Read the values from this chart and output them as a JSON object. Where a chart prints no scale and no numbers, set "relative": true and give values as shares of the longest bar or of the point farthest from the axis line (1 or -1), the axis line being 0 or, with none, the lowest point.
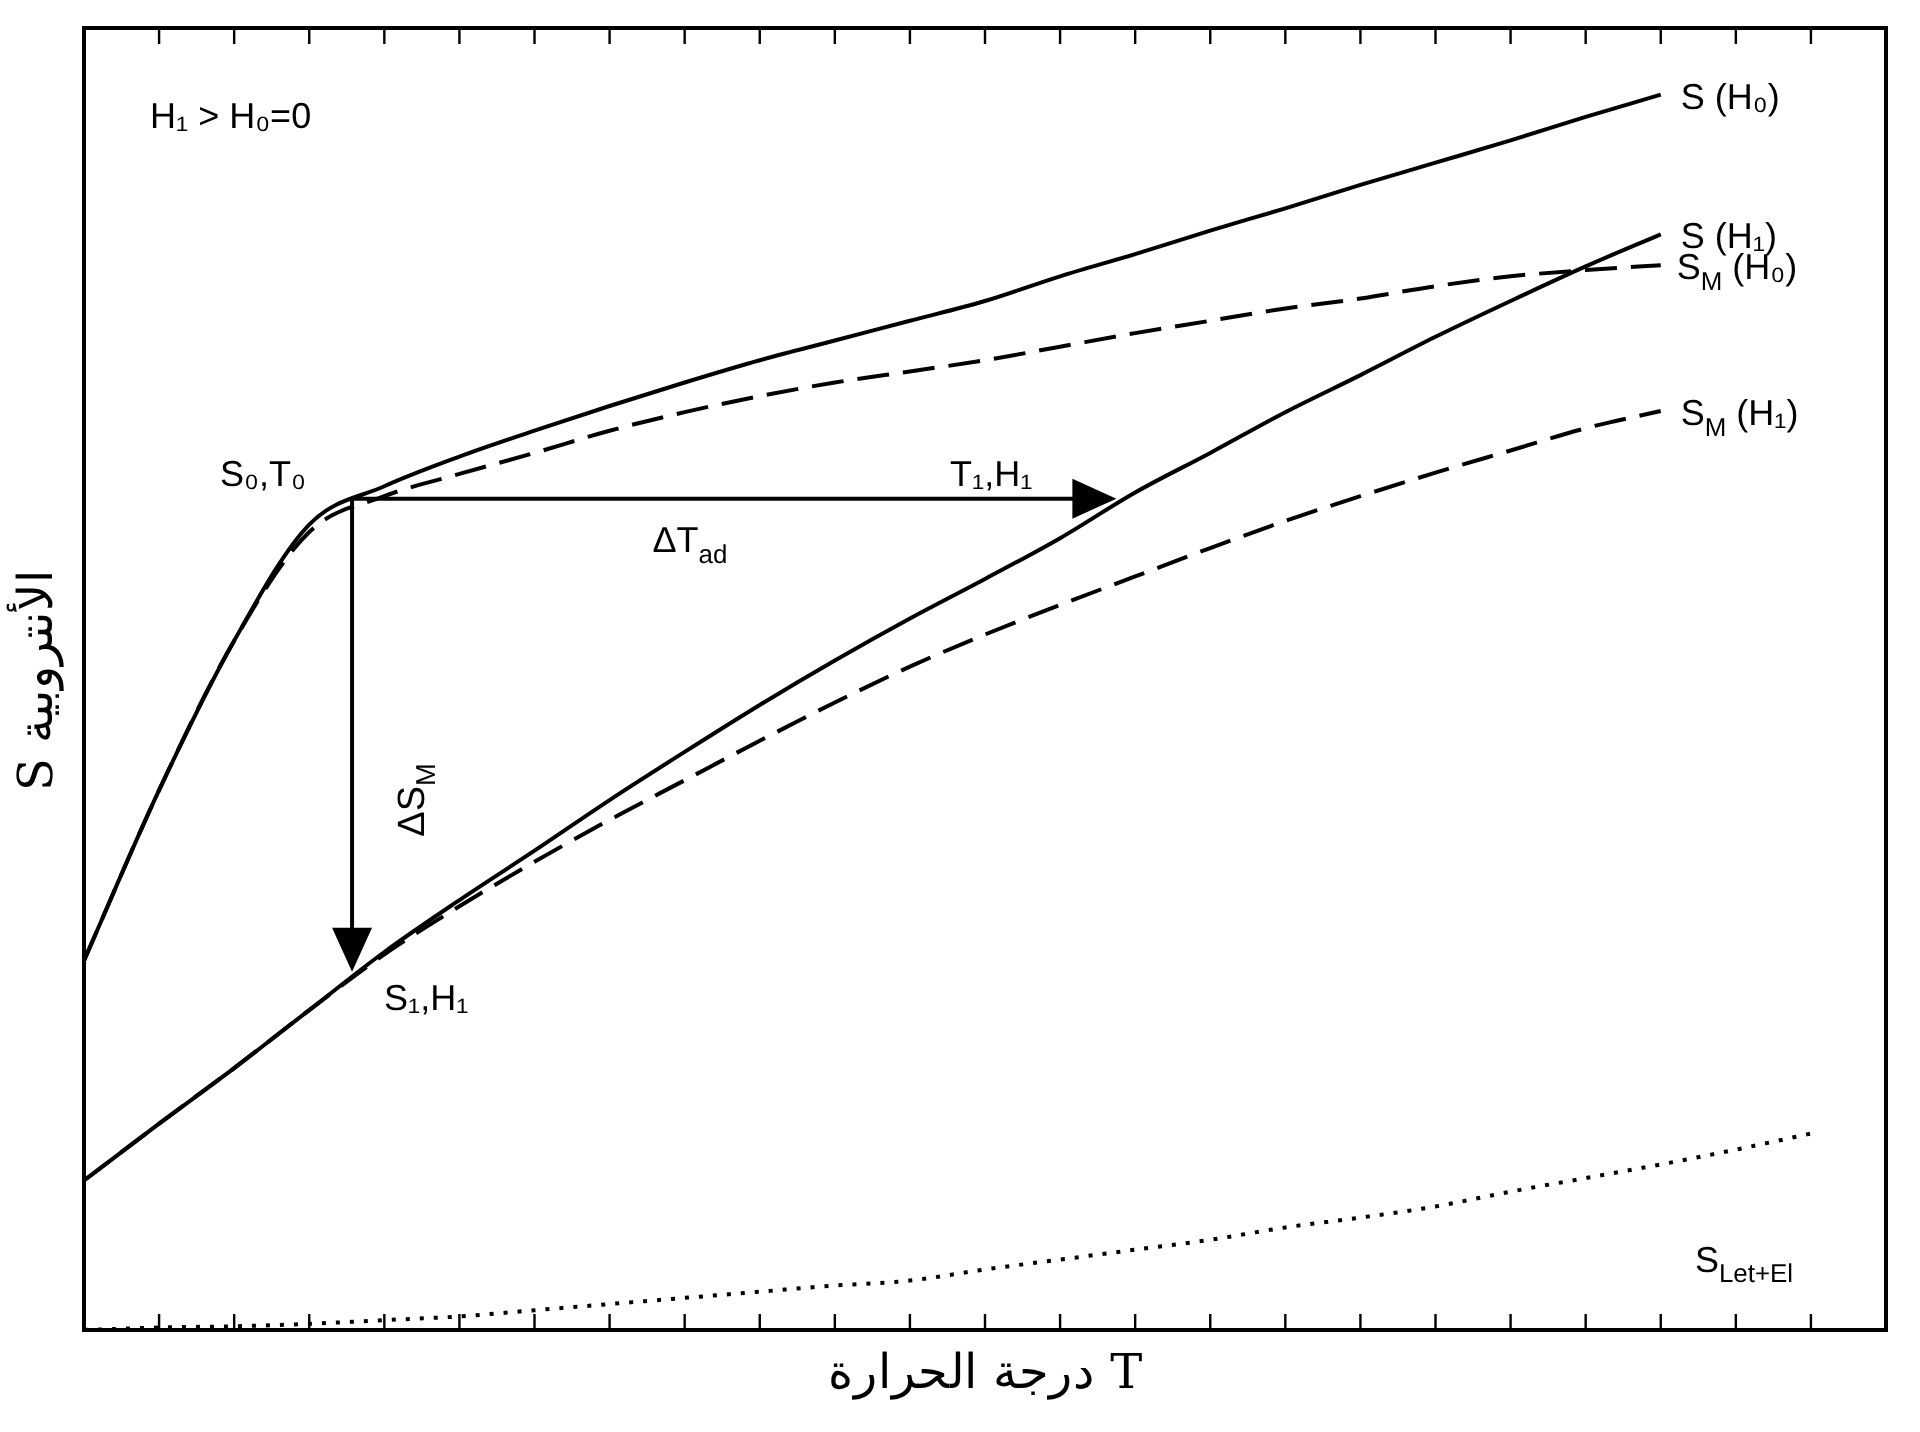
{
  "chart_data": {
    "type": "line",
    "relative": true,
    "xlabel": "درجة الحرارة T",
    "ylabel": "S الأنتروبية",
    "marker": "none",
    "categories": [
      null,
      null,
      null,
      null,
      null,
      null,
      null,
      null,
      null,
      null,
      null,
      null,
      null,
      null,
      null,
      null,
      null,
      null,
      null,
      null,
      null,
      null,
      null,
      null,
      null
    ],
    "series": [
      {
        "name": "S (H₀)",
        "color": "#000000",
        "line_style": "solid",
        "values": [
          0.299,
          0.437,
          0.558,
          0.652,
          0.683,
          0.707,
          0.728,
          0.748,
          0.767,
          0.785,
          0.801,
          0.817,
          0.833,
          0.853,
          0.871,
          0.89,
          0.908,
          0.927,
          0.945,
          0.963,
          0.982,
          1,
          null,
          null,
          null
        ]
      },
      {
        "name": "S (H₁)",
        "color": "#000000",
        "line_style": "solid",
        "values": [
          0.121,
          0.167,
          0.212,
          0.259,
          0.306,
          0.348,
          0.388,
          0.429,
          0.468,
          0.506,
          0.542,
          0.576,
          0.608,
          0.641,
          0.678,
          0.71,
          0.743,
          0.773,
          0.804,
          0.833,
          0.861,
          0.887,
          null,
          null,
          null
        ]
      },
      {
        "name": "S$_{M}$ (H₀)",
        "color": "#000000",
        "line_style": "dashed",
        "values": [
          0.299,
          0.437,
          0.558,
          0.646,
          0.675,
          0.693,
          0.71,
          0.728,
          0.743,
          0.756,
          0.767,
          0.776,
          0.785,
          0.796,
          0.807,
          0.817,
          0.827,
          0.835,
          0.845,
          0.853,
          0.858,
          0.862,
          null,
          null,
          null
        ]
      },
      {
        "name": "S$_{M}$ (H₁)",
        "color": "#000000",
        "line_style": "dashed",
        "values": [
          0.121,
          0.167,
          0.212,
          0.259,
          0.304,
          0.343,
          0.379,
          0.413,
          0.445,
          0.477,
          0.508,
          0.537,
          0.563,
          0.587,
          0.61,
          0.633,
          0.655,
          0.675,
          0.694,
          0.712,
          0.73,
          0.744,
          null,
          null,
          null
        ]
      },
      {
        "name": "S$_{Let+El}$",
        "color": "#000000",
        "line_style": "dotted",
        "values": [
          0,
          0.002,
          0.003,
          0.005,
          0.008,
          0.011,
          0.016,
          0.021,
          0.026,
          0.031,
          0.036,
          0.04,
          0.049,
          0.057,
          0.065,
          0.073,
          0.083,
          0.091,
          0.1,
          0.112,
          0.123,
          0.134,
          0.146,
          0.159,
          null
        ]
      }
    ],
    "annotations": [
      "H₁ > H₀=0",
      "S₀,T₀",
      "T₁,H₁",
      "ΔT$_{ad}$",
      "ΔS$_{M}$",
      "S₁,H₁"
    ]
  }
}
